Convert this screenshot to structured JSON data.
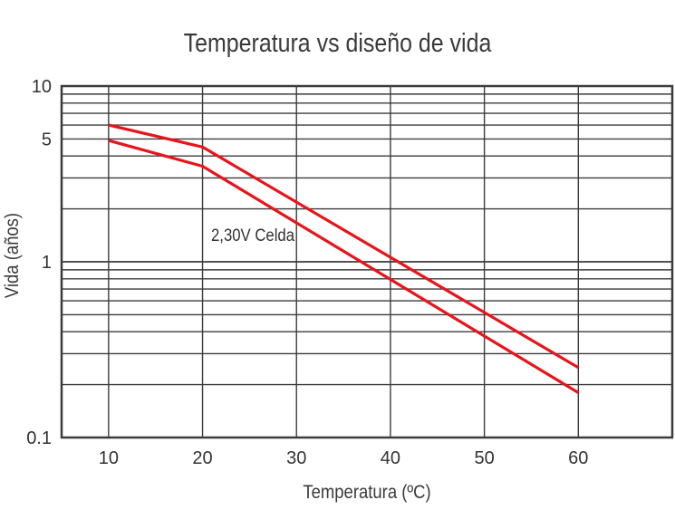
{
  "chart_data": {
    "type": "line",
    "title": "Temperatura vs diseño de vida",
    "xlabel": "Temperatura (ºC)",
    "ylabel": "Vida (años)",
    "x_ticks": [
      "10",
      "20",
      "30",
      "40",
      "50",
      "60"
    ],
    "y_ticks": [
      "0.1",
      "1",
      "5",
      "10"
    ],
    "xlim": [
      5,
      70
    ],
    "ylim": [
      0.1,
      10
    ],
    "y_scale": "log",
    "grid": true,
    "line_color": "#e8141b",
    "annotations": [
      "2,30V Celda"
    ],
    "series": [
      {
        "x": [
          10,
          20,
          60
        ],
        "y": [
          6.0,
          4.5,
          0.25
        ]
      },
      {
        "x": [
          10,
          20,
          60
        ],
        "y": [
          4.9,
          3.5,
          0.18
        ]
      }
    ]
  }
}
